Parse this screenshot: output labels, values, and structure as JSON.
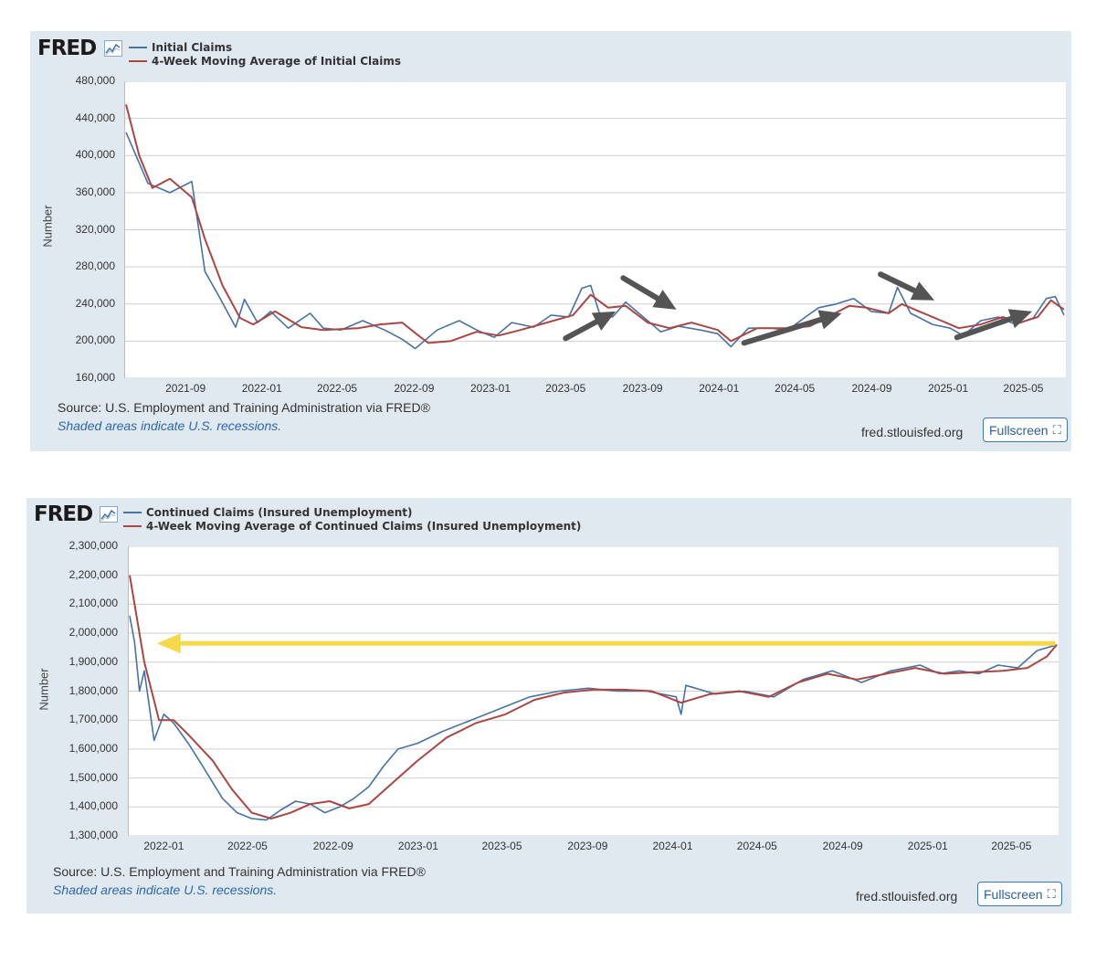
{
  "charts": [
    {
      "logo": "FRED",
      "legend": [
        "Initial Claims",
        "4-Week Moving Average of Initial Claims"
      ],
      "ylabel": "Number",
      "source": "Source: U.S. Employment and Training Administration via FRED®",
      "shade_note": "Shaded areas indicate U.S. recessions.",
      "site": "fred.stlouisfed.org",
      "fullscreen_label": "Fullscreen"
    },
    {
      "logo": "FRED",
      "legend": [
        "Continued Claims (Insured Unemployment)",
        "4-Week Moving Average of Continued Claims (Insured Unemployment)"
      ],
      "ylabel": "Number",
      "source": "Source: U.S. Employment and Training Administration via FRED®",
      "shade_note": "Shaded areas indicate U.S. recessions.",
      "site": "fred.stlouisfed.org",
      "fullscreen_label": "Fullscreen"
    }
  ],
  "colors": {
    "series_blue": "#4572a7",
    "series_red": "#aa4643",
    "annotation_arrow": "#545454",
    "annotation_yellow": "#f4d94a"
  },
  "icons": {
    "logo": "fred-chart-icon",
    "fullscreen": "expand-icon"
  },
  "chart_data": [
    {
      "type": "line",
      "ylim": [
        160000,
        480000
      ],
      "yticks": [
        "160,000",
        "200,000",
        "240,000",
        "280,000",
        "320,000",
        "360,000",
        "400,000",
        "440,000",
        "480,000"
      ],
      "xticks": [
        "2021-09",
        "2022-01",
        "2022-05",
        "2022-09",
        "2023-01",
        "2023-05",
        "2023-09",
        "2024-01",
        "2024-05",
        "2024-09",
        "2025-01",
        "2025-05"
      ],
      "xlim": [
        "2021-05-29",
        "2025-07-05"
      ],
      "grid": true,
      "legend_position": "top-left",
      "annotations": [
        "arrow-up-right near 2023-06",
        "arrow-down-right near 2023-10",
        "arrow-up-right near 2024-06",
        "arrow-down-right near 2024-11",
        "arrow-up-right near 2025-05"
      ],
      "series": [
        {
          "name": "Initial Claims",
          "x": [
            "2021-05-29",
            "2021-07-03",
            "2021-08-07",
            "2021-09-11",
            "2021-10-02",
            "2021-10-23",
            "2021-11-20",
            "2021-12-04",
            "2021-12-25",
            "2022-01-15",
            "2022-02-12",
            "2022-03-19",
            "2022-04-09",
            "2022-05-07",
            "2022-06-11",
            "2022-07-16",
            "2022-08-13",
            "2022-09-03",
            "2022-10-08",
            "2022-11-12",
            "2022-12-10",
            "2023-01-07",
            "2023-02-04",
            "2023-03-11",
            "2023-04-08",
            "2023-05-06",
            "2023-05-27",
            "2023-06-10",
            "2023-06-24",
            "2023-07-15",
            "2023-08-05",
            "2023-09-02",
            "2023-09-30",
            "2023-10-28",
            "2023-12-02",
            "2023-12-30",
            "2024-01-20",
            "2024-02-17",
            "2024-03-23",
            "2024-04-20",
            "2024-05-18",
            "2024-06-08",
            "2024-07-06",
            "2024-08-03",
            "2024-08-31",
            "2024-09-28",
            "2024-10-12",
            "2024-11-02",
            "2024-12-07",
            "2025-01-04",
            "2025-01-25",
            "2025-02-22",
            "2025-03-22",
            "2025-04-19",
            "2025-05-17",
            "2025-06-07",
            "2025-06-21",
            "2025-07-05"
          ],
          "y": [
            425000,
            370000,
            360000,
            372000,
            275000,
            250000,
            215000,
            245000,
            220000,
            232000,
            214000,
            230000,
            214000,
            212000,
            222000,
            212000,
            202000,
            192000,
            212000,
            222000,
            212000,
            204000,
            220000,
            215000,
            228000,
            226000,
            257000,
            260000,
            230000,
            226000,
            242000,
            226000,
            210000,
            216000,
            212000,
            208000,
            194000,
            214000,
            214000,
            212000,
            226000,
            236000,
            240000,
            246000,
            232000,
            230000,
            258000,
            230000,
            218000,
            214000,
            206000,
            222000,
            226000,
            218000,
            225000,
            246000,
            248000,
            228000
          ]
        },
        {
          "name": "4-Week Moving Average of Initial Claims",
          "x": [
            "2021-05-29",
            "2021-06-19",
            "2021-07-10",
            "2021-08-07",
            "2021-09-11",
            "2021-10-02",
            "2021-10-30",
            "2021-11-27",
            "2021-12-18",
            "2022-01-22",
            "2022-03-05",
            "2022-04-09",
            "2022-06-04",
            "2022-07-09",
            "2022-08-13",
            "2022-09-10",
            "2022-09-24",
            "2022-10-29",
            "2022-12-10",
            "2023-01-14",
            "2023-02-18",
            "2023-04-01",
            "2023-05-13",
            "2023-06-10",
            "2023-07-08",
            "2023-08-05",
            "2023-09-09",
            "2023-10-14",
            "2023-11-18",
            "2023-12-30",
            "2024-01-20",
            "2024-03-02",
            "2024-04-20",
            "2024-05-25",
            "2024-06-22",
            "2024-07-27",
            "2024-08-24",
            "2024-09-28",
            "2024-10-19",
            "2024-11-16",
            "2024-12-21",
            "2025-01-18",
            "2025-02-22",
            "2025-03-29",
            "2025-04-26",
            "2025-05-24",
            "2025-06-14",
            "2025-07-05"
          ],
          "y": [
            455000,
            400000,
            365000,
            375000,
            355000,
            310000,
            260000,
            225000,
            218000,
            232000,
            215000,
            212000,
            214000,
            218000,
            220000,
            205000,
            198000,
            200000,
            210000,
            206000,
            212000,
            220000,
            228000,
            250000,
            236000,
            238000,
            220000,
            214000,
            220000,
            212000,
            200000,
            214000,
            214000,
            216000,
            226000,
            238000,
            236000,
            230000,
            240000,
            232000,
            222000,
            214000,
            218000,
            226000,
            220000,
            226000,
            244000,
            234000
          ]
        }
      ]
    },
    {
      "type": "line",
      "ylim": [
        1300000,
        2300000
      ],
      "yticks": [
        "1,300,000",
        "1,400,000",
        "1,500,000",
        "1,600,000",
        "1,700,000",
        "1,800,000",
        "1,900,000",
        "2,000,000",
        "2,100,000",
        "2,200,000",
        "2,300,000"
      ],
      "xticks": [
        "2022-01",
        "2022-05",
        "2022-09",
        "2023-01",
        "2023-05",
        "2023-09",
        "2024-01",
        "2024-05",
        "2024-09",
        "2025-01",
        "2025-05"
      ],
      "xlim": [
        "2021-11-13",
        "2025-07-05"
      ],
      "grid": true,
      "legend_position": "top-left",
      "annotations": [
        "horizontal arrow pointing left at about 1,965,000"
      ],
      "series": [
        {
          "name": "Continued Claims (Insured Unemployment)",
          "x": [
            "2021-11-13",
            "2021-11-20",
            "2021-11-27",
            "2021-12-04",
            "2021-12-18",
            "2022-01-01",
            "2022-01-15",
            "2022-02-05",
            "2022-02-26",
            "2022-03-26",
            "2022-04-16",
            "2022-05-07",
            "2022-05-28",
            "2022-06-18",
            "2022-07-09",
            "2022-07-30",
            "2022-08-20",
            "2022-09-10",
            "2022-10-01",
            "2022-10-22",
            "2022-11-12",
            "2022-12-03",
            "2022-12-31",
            "2023-02-04",
            "2023-03-18",
            "2023-04-29",
            "2023-06-10",
            "2023-07-22",
            "2023-09-02",
            "2023-10-14",
            "2023-11-25",
            "2024-01-06",
            "2024-01-13",
            "2024-01-20",
            "2024-03-02",
            "2024-04-13",
            "2024-05-25",
            "2024-07-06",
            "2024-08-17",
            "2024-09-28",
            "2024-11-09",
            "2024-12-21",
            "2025-01-18",
            "2025-02-15",
            "2025-03-15",
            "2025-04-12",
            "2025-05-10",
            "2025-06-07",
            "2025-07-05"
          ],
          "y": [
            2060000,
            1970000,
            1800000,
            1870000,
            1630000,
            1720000,
            1690000,
            1620000,
            1540000,
            1430000,
            1380000,
            1360000,
            1355000,
            1390000,
            1420000,
            1410000,
            1380000,
            1400000,
            1430000,
            1470000,
            1540000,
            1600000,
            1620000,
            1660000,
            1700000,
            1740000,
            1780000,
            1800000,
            1810000,
            1800000,
            1800000,
            1780000,
            1720000,
            1820000,
            1790000,
            1800000,
            1780000,
            1840000,
            1870000,
            1830000,
            1870000,
            1890000,
            1860000,
            1870000,
            1860000,
            1890000,
            1880000,
            1940000,
            1960000
          ]
        },
        {
          "name": "4-Week Moving Average of Continued Claims (Insured Unemployment)",
          "x": [
            "2021-11-13",
            "2021-12-04",
            "2021-12-25",
            "2022-01-15",
            "2022-02-05",
            "2022-03-12",
            "2022-04-09",
            "2022-05-07",
            "2022-06-04",
            "2022-07-02",
            "2022-07-30",
            "2022-08-27",
            "2022-09-24",
            "2022-10-22",
            "2022-11-19",
            "2022-12-31",
            "2023-02-11",
            "2023-03-25",
            "2023-05-06",
            "2023-06-17",
            "2023-07-29",
            "2023-09-09",
            "2023-10-21",
            "2023-12-02",
            "2024-01-13",
            "2024-02-24",
            "2024-04-06",
            "2024-05-18",
            "2024-06-29",
            "2024-08-10",
            "2024-09-21",
            "2024-11-02",
            "2024-12-14",
            "2025-01-25",
            "2025-03-08",
            "2025-04-19",
            "2025-05-24",
            "2025-06-21",
            "2025-07-05"
          ],
          "y": [
            2200000,
            1900000,
            1700000,
            1700000,
            1650000,
            1560000,
            1460000,
            1380000,
            1360000,
            1380000,
            1410000,
            1420000,
            1395000,
            1410000,
            1470000,
            1560000,
            1640000,
            1690000,
            1720000,
            1770000,
            1795000,
            1805000,
            1805000,
            1800000,
            1760000,
            1790000,
            1800000,
            1780000,
            1830000,
            1860000,
            1840000,
            1860000,
            1880000,
            1860000,
            1865000,
            1870000,
            1880000,
            1920000,
            1960000
          ]
        }
      ]
    }
  ]
}
